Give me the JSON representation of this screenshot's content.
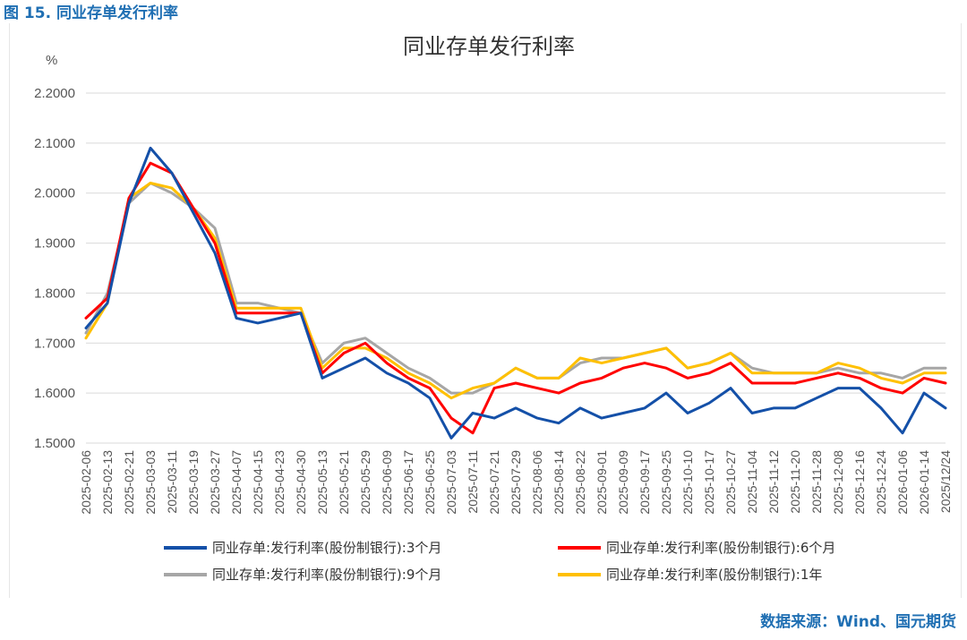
{
  "figure_label": "图 15. 同业存单发行利率",
  "source_note": "数据来源：Wind、国元期货",
  "colors": {
    "s3m": "#1450a8",
    "s6m": "#ff0000",
    "s9m": "#a6a6a6",
    "s1y": "#ffc000",
    "grid": "#d9d9d9"
  },
  "chart_data": {
    "type": "line",
    "title": "同业存单发行利率",
    "ylabel": "%",
    "xlabel": "",
    "ylim": [
      1.5,
      2.2
    ],
    "yticks": [
      "1.5000",
      "1.6000",
      "1.7000",
      "1.8000",
      "1.9000",
      "2.0000",
      "2.1000",
      "2.2000"
    ],
    "grid": true,
    "legend_position": "bottom",
    "x": [
      "2025-02-06",
      "2025-02-13",
      "2025-02-21",
      "2025-03-03",
      "2025-03-11",
      "2025-03-19",
      "2025-03-27",
      "2025-04-07",
      "2025-04-15",
      "2025-04-23",
      "2025-04-30",
      "2025-05-13",
      "2025-05-21",
      "2025-05-29",
      "2025-06-09",
      "2025-06-17",
      "2025-06-25",
      "2025-07-03",
      "2025-07-11",
      "2025-07-21",
      "2025-07-29",
      "2025-08-06",
      "2025-08-14",
      "2025-08-22",
      "2025-09-01",
      "2025-09-09",
      "2025-09-17",
      "2025-09-25",
      "2025-10-10",
      "2025-10-17",
      "2025-10-27",
      "2025-11-04",
      "2025-11-12",
      "2025-11-20",
      "2025-11-28",
      "2025-12-08",
      "2025-12-16",
      "2025-12-24",
      "2026-01-06",
      "2026-01-14",
      "2025/12/24"
    ],
    "series": [
      {
        "name": "同业存单:发行利率(股份制银行):3个月",
        "color": "#1450a8",
        "values": [
          1.73,
          1.78,
          1.98,
          2.09,
          2.04,
          1.96,
          1.88,
          1.75,
          1.74,
          1.75,
          1.76,
          1.63,
          1.65,
          1.67,
          1.64,
          1.62,
          1.59,
          1.51,
          1.56,
          1.55,
          1.57,
          1.55,
          1.54,
          1.57,
          1.55,
          1.56,
          1.57,
          1.6,
          1.56,
          1.58,
          1.61,
          1.56,
          1.57,
          1.57,
          1.59,
          1.61,
          1.61,
          1.57,
          1.52,
          1.6,
          1.57
        ]
      },
      {
        "name": "同业存单:发行利率(股份制银行):6个月",
        "color": "#ff0000",
        "values": [
          1.75,
          1.79,
          1.99,
          2.06,
          2.04,
          1.97,
          1.9,
          1.76,
          1.76,
          1.76,
          1.76,
          1.64,
          1.68,
          1.7,
          1.66,
          1.63,
          1.61,
          1.55,
          1.52,
          1.61,
          1.62,
          1.61,
          1.6,
          1.62,
          1.63,
          1.65,
          1.66,
          1.65,
          1.63,
          1.64,
          1.66,
          1.62,
          1.62,
          1.62,
          1.63,
          1.64,
          1.63,
          1.61,
          1.6,
          1.63,
          1.62
        ]
      },
      {
        "name": "同业存单:发行利率(股份制银行):9个月",
        "color": "#a6a6a6",
        "values": [
          1.72,
          1.8,
          1.98,
          2.02,
          2.0,
          1.97,
          1.93,
          1.78,
          1.78,
          1.77,
          1.76,
          1.66,
          1.7,
          1.71,
          1.68,
          1.65,
          1.63,
          1.6,
          1.6,
          1.62,
          1.65,
          1.63,
          1.63,
          1.66,
          1.67,
          1.67,
          1.68,
          1.69,
          1.65,
          1.66,
          1.68,
          1.65,
          1.64,
          1.64,
          1.64,
          1.65,
          1.64,
          1.64,
          1.63,
          1.65,
          1.65
        ]
      },
      {
        "name": "同业存单:发行利率(股份制银行):1年",
        "color": "#ffc000",
        "values": [
          1.71,
          1.78,
          1.99,
          2.02,
          2.01,
          1.97,
          1.91,
          1.77,
          1.77,
          1.77,
          1.77,
          1.65,
          1.69,
          1.69,
          1.67,
          1.64,
          1.62,
          1.59,
          1.61,
          1.62,
          1.65,
          1.63,
          1.63,
          1.67,
          1.66,
          1.67,
          1.68,
          1.69,
          1.65,
          1.66,
          1.68,
          1.64,
          1.64,
          1.64,
          1.64,
          1.66,
          1.65,
          1.63,
          1.62,
          1.64,
          1.64
        ]
      }
    ]
  }
}
